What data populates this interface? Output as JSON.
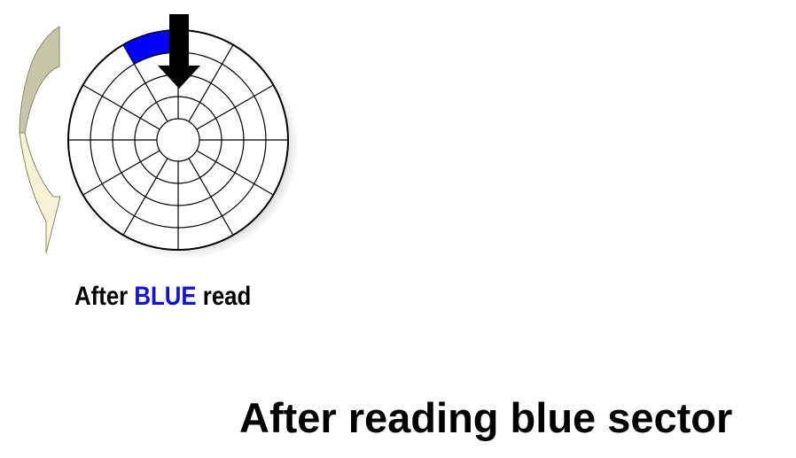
{
  "diagram": {
    "disk": {
      "tracks": 4,
      "sectors": 12,
      "highlighted": {
        "track": 4,
        "sector": 0,
        "label": "blue sector",
        "color": "#0000ff"
      }
    },
    "head_arrow_color": "#000000",
    "rotation_arrow_colors": {
      "back": "#c7c5a8",
      "front": "#f6f3d6",
      "outline": "#8a8868"
    }
  },
  "caption": {
    "prefix": "After ",
    "highlight": "BLUE",
    "suffix": " read",
    "highlight_color": "#1010e8"
  },
  "title": "After reading blue sector"
}
